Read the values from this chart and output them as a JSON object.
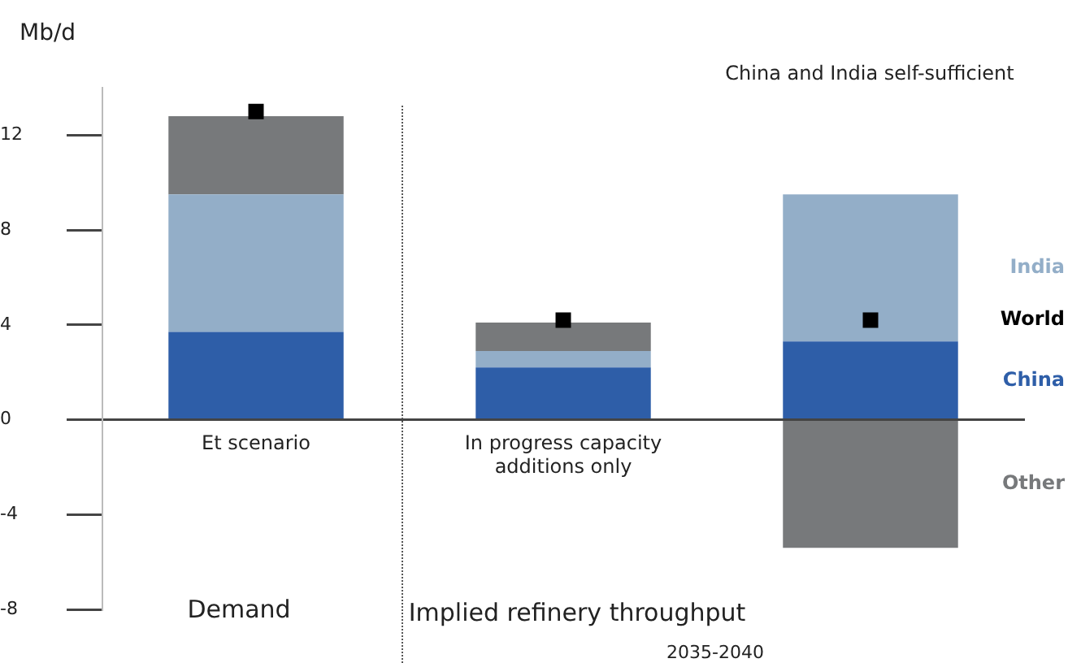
{
  "chart_data": {
    "type": "bar",
    "stacked": true,
    "ylabel": "Mb/d",
    "categories": [
      "Et scenario",
      "In progress capacity additions only",
      null
    ],
    "series": [
      {
        "name": "China",
        "color": "#2e5ea8",
        "values": [
          3.7,
          2.2,
          3.3
        ]
      },
      {
        "name": "India",
        "color": "#93aec8",
        "values": [
          5.8,
          0.7,
          6.2
        ]
      },
      {
        "name": "Other",
        "color": "#77797b",
        "values": [
          3.3,
          1.2,
          -5.4
        ]
      },
      {
        "name": "World",
        "type": "scatter",
        "color": "#000000",
        "values": [
          13.0,
          4.2,
          4.2
        ]
      }
    ],
    "ylim": [
      -8,
      14
    ],
    "marker": "square",
    "yticks": [
      -8,
      -4,
      0,
      4,
      8,
      12
    ],
    "grid": false,
    "legend": "right",
    "annotations": [
      "China and India self-sufficient",
      "Demand",
      "Implied refinery throughput",
      "2035-2040"
    ]
  }
}
